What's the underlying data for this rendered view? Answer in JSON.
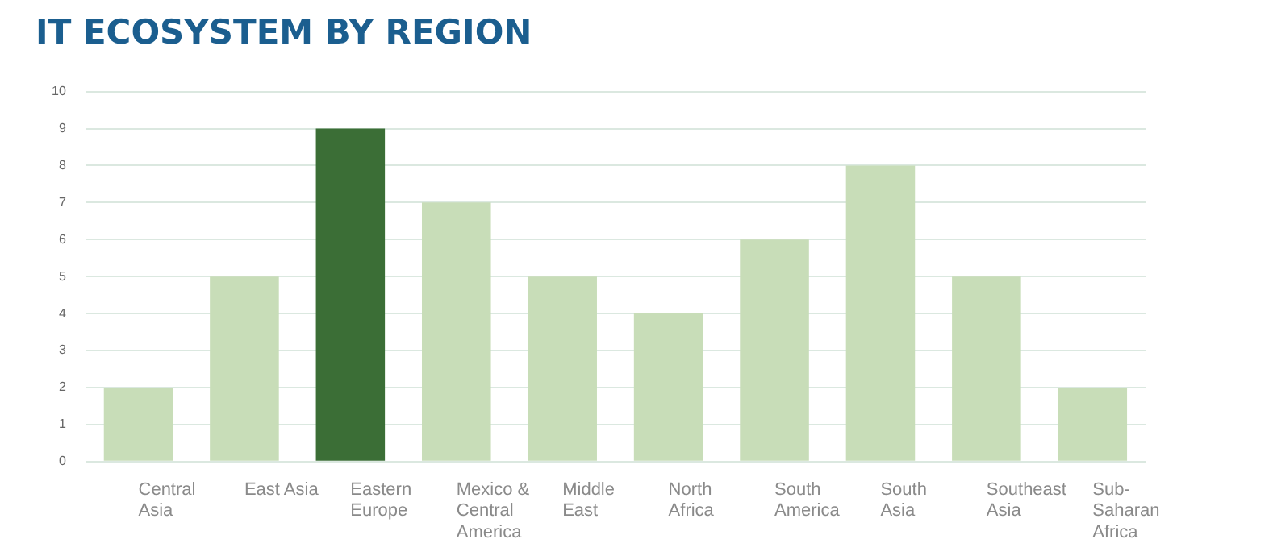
{
  "chart_data": {
    "type": "bar",
    "title": "IT ECOSYSTEM BY REGION",
    "categories": [
      "Central Asia",
      "East Asia",
      "Eastern Europe",
      "Mexico & Central America",
      "Middle East",
      "North Africa",
      "South America",
      "South Asia",
      "Southeast Asia",
      "Sub-Saharan Africa"
    ],
    "values": [
      2,
      5,
      9,
      7,
      5,
      4,
      6,
      8,
      5,
      2
    ],
    "colors": [
      "#c8ddb8",
      "#c8ddb8",
      "#3b6e36",
      "#c8ddb8",
      "#c8ddb8",
      "#c8ddb8",
      "#c8ddb8",
      "#c8ddb8",
      "#c8ddb8",
      "#c8ddb8"
    ],
    "ylim": [
      0,
      10
    ],
    "yticks": [
      0,
      1,
      2,
      3,
      4,
      5,
      6,
      7,
      8,
      9,
      10
    ],
    "grid": "y",
    "legend": false
  }
}
